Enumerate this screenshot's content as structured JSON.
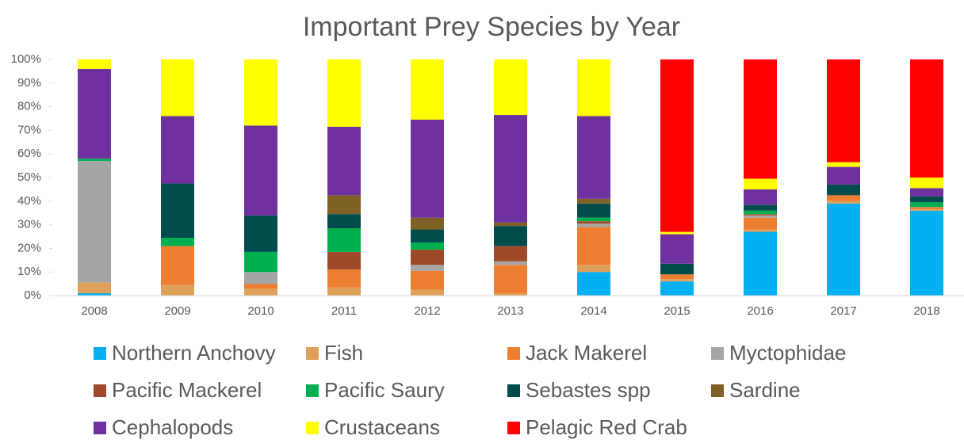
{
  "chart_data": {
    "type": "stacked_bar",
    "title": "Important Prey Species by Year",
    "categories": [
      "2008",
      "2009",
      "2010",
      "2011",
      "2012",
      "2013",
      "2014",
      "2015",
      "2016",
      "2017",
      "2018"
    ],
    "series": [
      {
        "name": "Northern Anchovy",
        "color": "#00b0f0",
        "values": [
          1,
          0,
          0,
          0,
          0,
          0,
          10,
          6,
          27,
          39,
          36
        ]
      },
      {
        "name": "Fish",
        "color": "#dda15a",
        "values": [
          4.5,
          4.5,
          3,
          3.5,
          2.5,
          1,
          3,
          1,
          1,
          1,
          0.5
        ]
      },
      {
        "name": "Jack Makerel",
        "color": "#ed7d31",
        "values": [
          0,
          16.5,
          2,
          7.5,
          8,
          12,
          16,
          2,
          5,
          2.5,
          1
        ]
      },
      {
        "name": "Myctophidae",
        "color": "#a5a5a5",
        "values": [
          51.5,
          0,
          5,
          0,
          2.5,
          1.5,
          1.5,
          0,
          1,
          0,
          0
        ]
      },
      {
        "name": "Pacific Mackerel",
        "color": "#9e4a2a",
        "values": [
          0,
          0,
          0,
          7.5,
          6.5,
          6.5,
          1,
          0,
          0.5,
          0,
          0
        ]
      },
      {
        "name": "Pacific Saury",
        "color": "#00b050",
        "values": [
          1,
          3.5,
          8.5,
          10,
          3,
          0,
          1.5,
          0,
          1.5,
          0,
          2
        ]
      },
      {
        "name": "Sebastes spp",
        "color": "#004c4c",
        "values": [
          0,
          23,
          15.5,
          6,
          5.5,
          8.5,
          6,
          4.5,
          2.5,
          4.5,
          2.5
        ]
      },
      {
        "name": "Sardine",
        "color": "#7f6025",
        "values": [
          0,
          0,
          0,
          8,
          5,
          1.5,
          2,
          0,
          0,
          0,
          0
        ]
      },
      {
        "name": "Cephalopods",
        "color": "#7030a0",
        "values": [
          38,
          28.5,
          38,
          29,
          41.5,
          45.5,
          35,
          12.5,
          6.5,
          7.5,
          3.5
        ]
      },
      {
        "name": "Crustaceans",
        "color": "#ffff00",
        "values": [
          4,
          24,
          28,
          28.5,
          25.5,
          23.5,
          24,
          1,
          4.5,
          2,
          4.5
        ]
      },
      {
        "name": "Pelagic Red Crab",
        "color": "#ff0000",
        "values": [
          0,
          0,
          0,
          0,
          0,
          0,
          0,
          73,
          50.5,
          43.5,
          50
        ]
      }
    ],
    "ylim": [
      0,
      100
    ],
    "yticks": [
      {
        "value": 0,
        "label": "0%"
      },
      {
        "value": 10,
        "label": "10%"
      },
      {
        "value": 20,
        "label": "20%"
      },
      {
        "value": 30,
        "label": "30%"
      },
      {
        "value": 40,
        "label": "40%"
      },
      {
        "value": 50,
        "label": "50%"
      },
      {
        "value": 60,
        "label": "60%"
      },
      {
        "value": 70,
        "label": "70%"
      },
      {
        "value": 80,
        "label": "80%"
      },
      {
        "value": 90,
        "label": "90%"
      },
      {
        "value": 100,
        "label": "100%"
      }
    ],
    "legend": "bottom"
  }
}
